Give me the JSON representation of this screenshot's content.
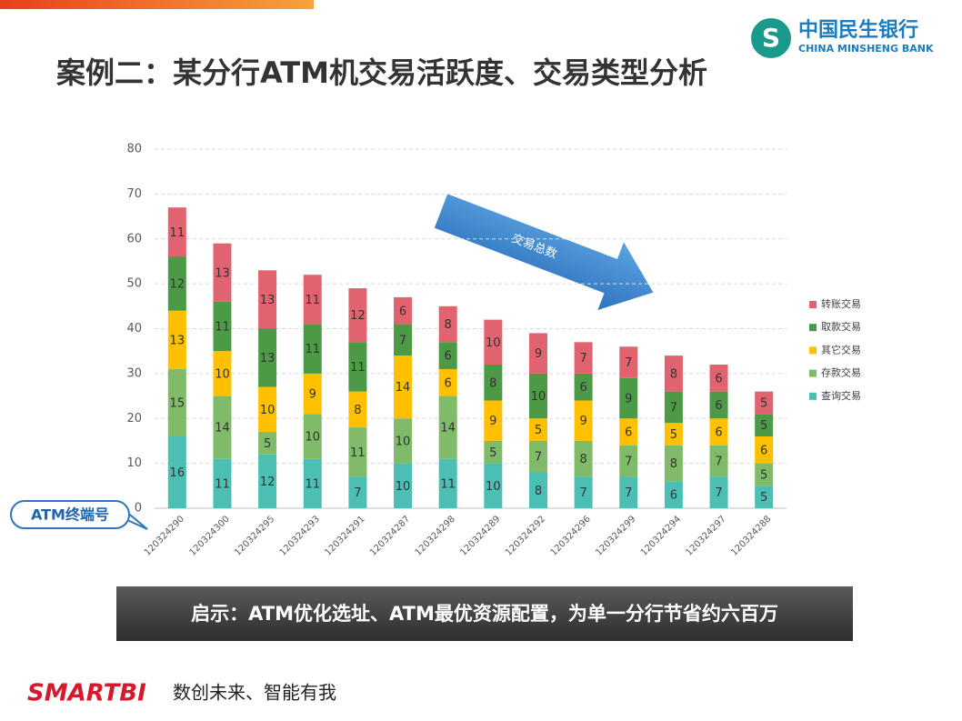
{
  "header": {
    "title": "案例二：某分行ATM机交易活跃度、交易类型分析",
    "logo_cn": "中国民生银行",
    "logo_en": "CHINA MINSHENG BANK"
  },
  "chart_data": {
    "type": "stacked_bar",
    "categories": [
      "120324290",
      "120324300",
      "120324295",
      "120324293",
      "120324291",
      "120324287",
      "120324298",
      "120324289",
      "120324292",
      "120324296",
      "120324299",
      "120324294",
      "120324297",
      "120324288"
    ],
    "series": [
      {
        "name": "查询交易",
        "color": "#4bbfb4",
        "values": [
          16,
          11,
          12,
          11,
          7,
          10,
          11,
          10,
          8,
          7,
          7,
          6,
          7,
          5
        ]
      },
      {
        "name": "存款交易",
        "color": "#7fbb68",
        "values": [
          15,
          14,
          5,
          10,
          11,
          10,
          14,
          5,
          7,
          8,
          7,
          8,
          7,
          5
        ]
      },
      {
        "name": "其它交易",
        "color": "#ffc000",
        "values": [
          13,
          10,
          10,
          9,
          8,
          14,
          6,
          9,
          5,
          9,
          6,
          5,
          6,
          6
        ]
      },
      {
        "name": "取款交易",
        "color": "#4c9a46",
        "values": [
          12,
          11,
          13,
          11,
          11,
          7,
          6,
          8,
          10,
          6,
          9,
          7,
          6,
          5
        ]
      },
      {
        "name": "转账交易",
        "color": "#e0636f",
        "values": [
          11,
          13,
          13,
          11,
          12,
          6,
          8,
          10,
          9,
          7,
          7,
          8,
          6,
          5
        ]
      }
    ],
    "ylim": [
      0,
      80
    ],
    "yticks": [
      0,
      10,
      20,
      30,
      40,
      50,
      60,
      70,
      80
    ],
    "grid": true,
    "legend": "right",
    "annotations": [
      "交易总数",
      "ATM终端号"
    ]
  },
  "conclusion": "启示：ATM优化选址、ATM最优资源配置，为单一分行节省约六百万",
  "footer": {
    "brand": "SMARTBI",
    "slogan": "数创未来、智能有我"
  }
}
